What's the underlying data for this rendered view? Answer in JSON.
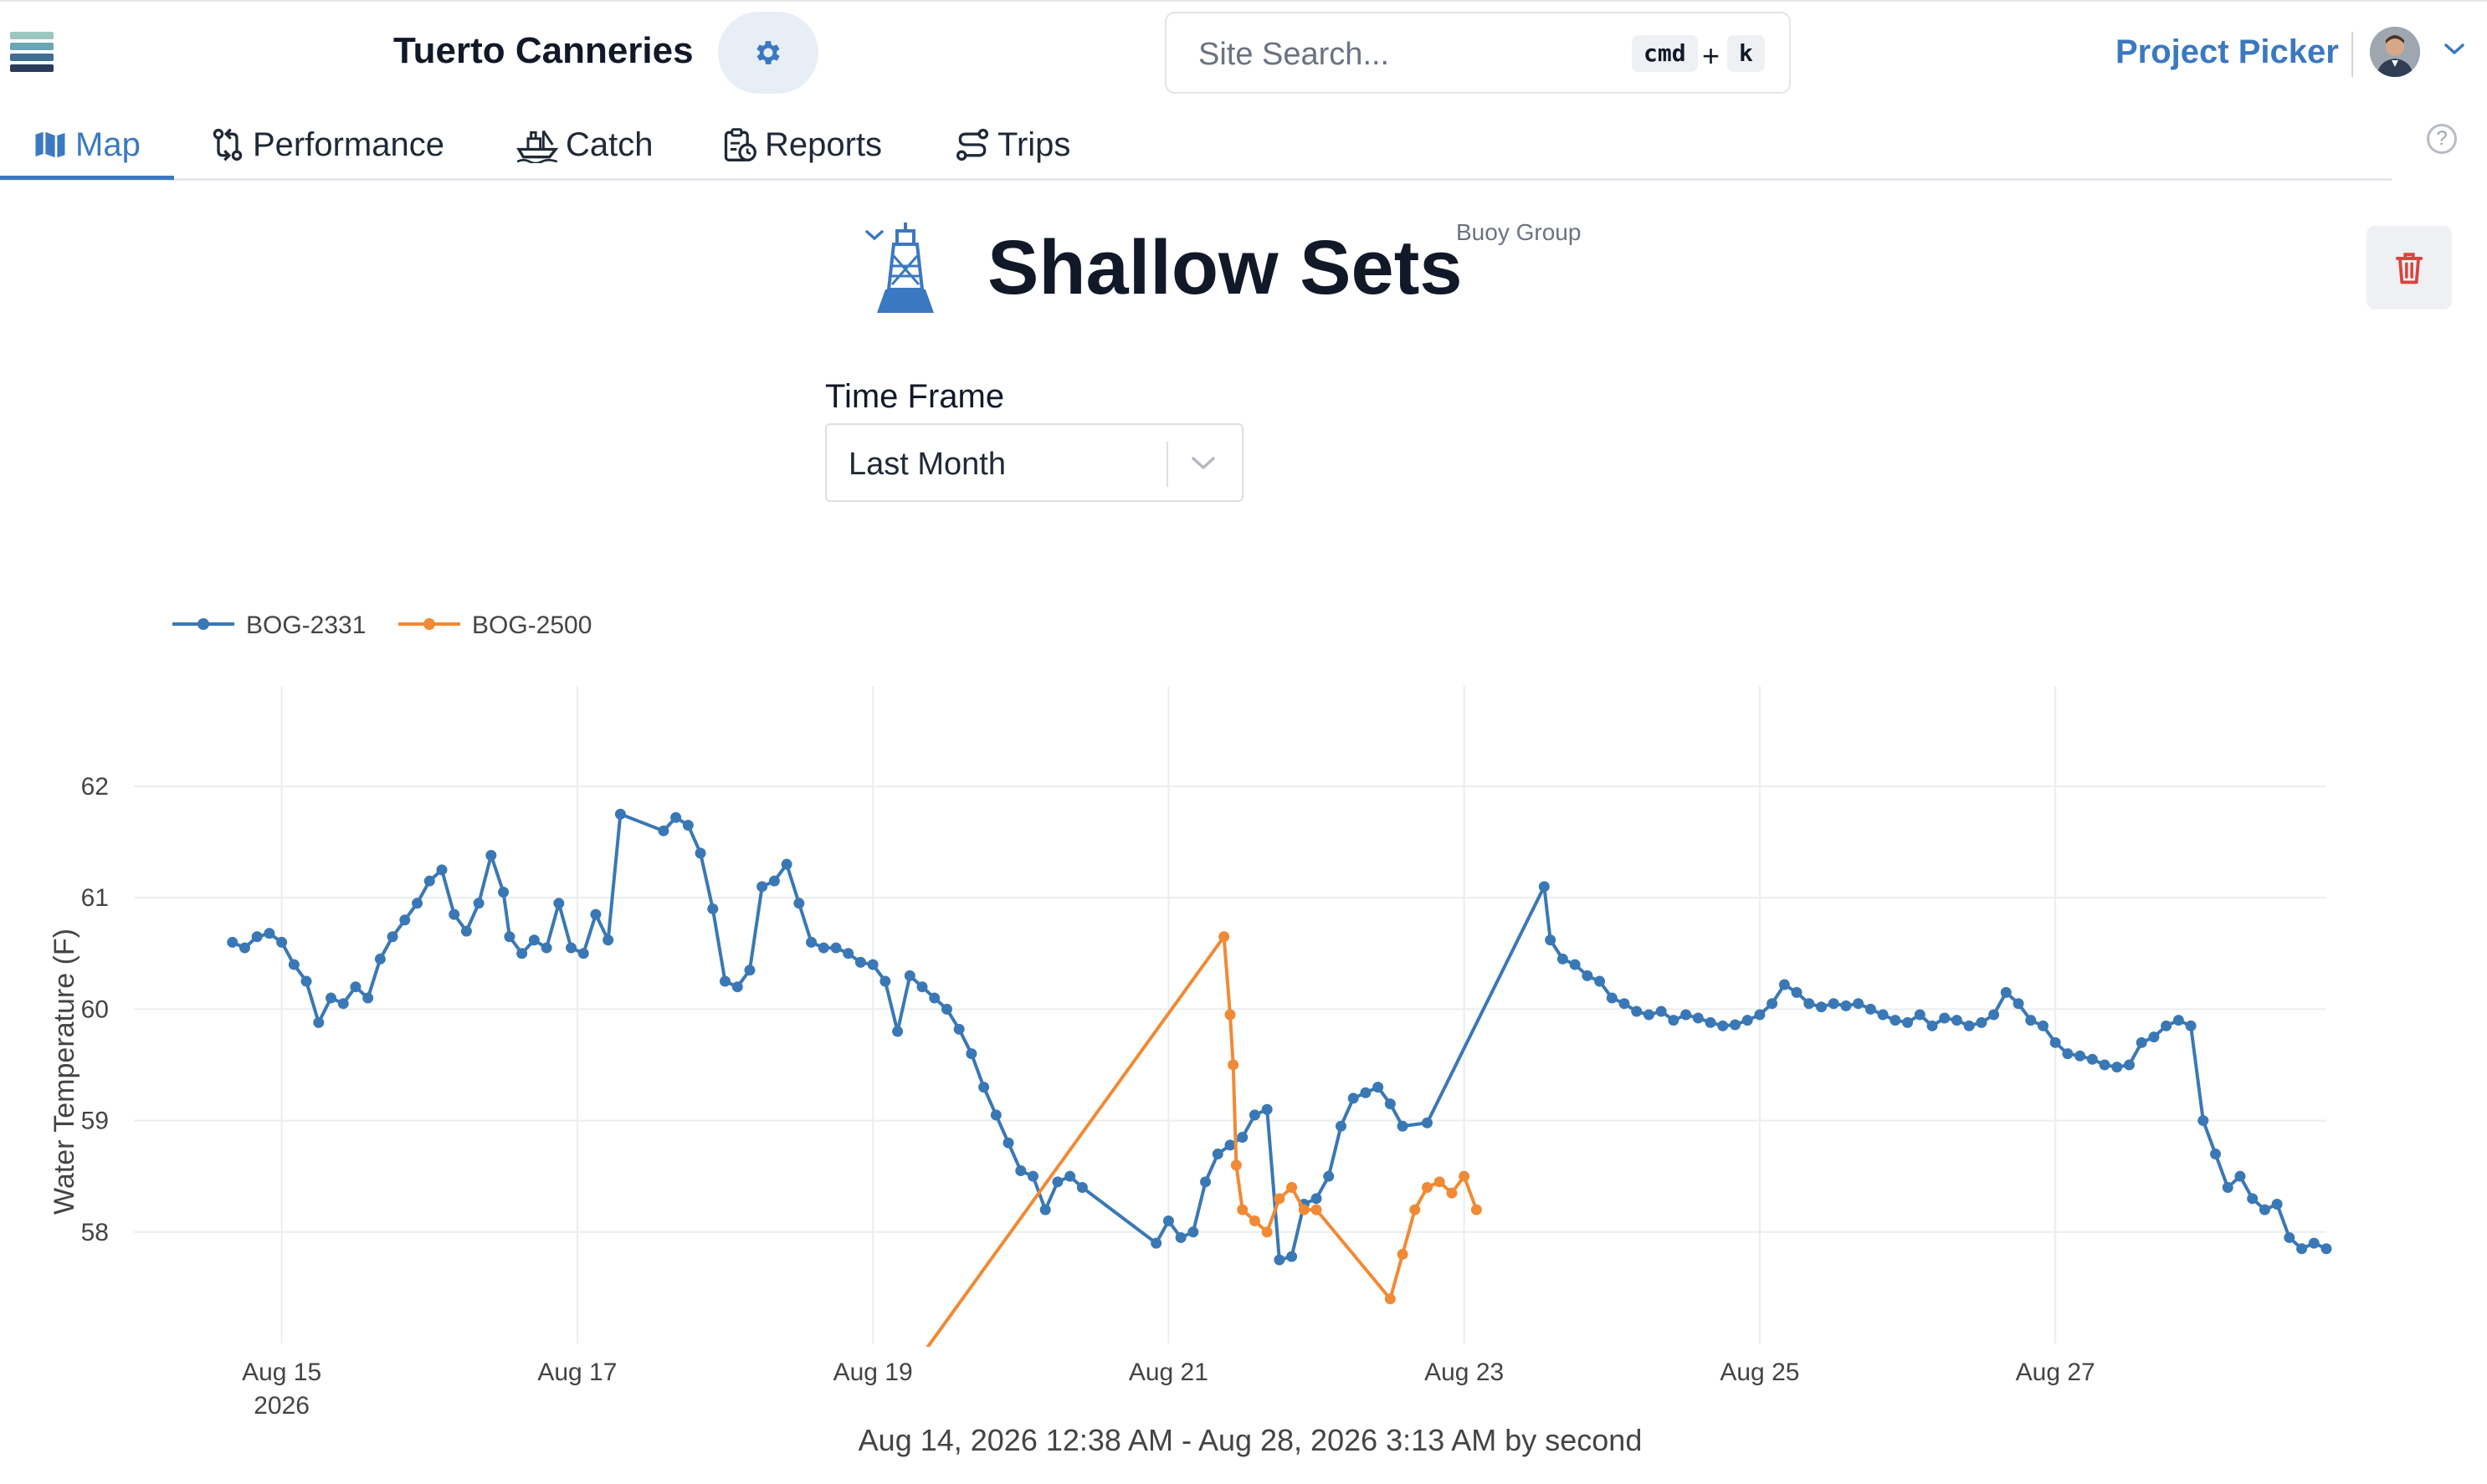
{
  "header": {
    "org_name": "Tuerto Canneries",
    "search_placeholder": "Site Search...",
    "shortcut_cmd": "cmd",
    "shortcut_plus": "+",
    "shortcut_key": "k",
    "project_picker": "Project Picker"
  },
  "nav": {
    "tabs": [
      {
        "label": "Map",
        "icon": "map-icon",
        "active": true
      },
      {
        "label": "Performance",
        "icon": "git-compare-icon",
        "active": false
      },
      {
        "label": "Catch",
        "icon": "boat-icon",
        "active": false
      },
      {
        "label": "Reports",
        "icon": "clipboard-clock-icon",
        "active": false
      },
      {
        "label": "Trips",
        "icon": "route-icon",
        "active": false
      }
    ],
    "help": "?"
  },
  "page": {
    "title": "Shallow Sets",
    "group_label": "Buoy Group",
    "timeframe_label": "Time Frame",
    "timeframe_value": "Last Month"
  },
  "colors": {
    "accent": "#3b78c2",
    "series_1": "#3a78b5",
    "series_2": "#f08a35",
    "danger": "#d9443d"
  },
  "chart_data": {
    "type": "line",
    "ylabel": "Water Temperature (F)",
    "xlabel": "Aug 14, 2026 12:38 AM - Aug 28, 2026 3:13 AM by second",
    "x_tick_labels": [
      "Aug 15",
      "Aug 17",
      "Aug 19",
      "Aug 21",
      "Aug 23",
      "Aug 25",
      "Aug 27"
    ],
    "x_tick_year": "2026",
    "x_range": [
      "2026-08-14T00:00",
      "2026-08-28T20:00"
    ],
    "y_tick_labels": [
      "62",
      "61",
      "60",
      "59",
      "58"
    ],
    "ylim": [
      57.0,
      62.6
    ],
    "grid": true,
    "legend_position": "top-left",
    "series": [
      {
        "name": "BOG-2331",
        "markers": true,
        "points": [
          [
            "2026-08-14T16:00",
            60.6
          ],
          [
            "2026-08-14T18:00",
            60.55
          ],
          [
            "2026-08-14T20:00",
            60.65
          ],
          [
            "2026-08-14T22:00",
            60.68
          ],
          [
            "2026-08-15T00:00",
            60.6
          ],
          [
            "2026-08-15T02:00",
            60.4
          ],
          [
            "2026-08-15T04:00",
            60.25
          ],
          [
            "2026-08-15T06:00",
            59.88
          ],
          [
            "2026-08-15T08:00",
            60.1
          ],
          [
            "2026-08-15T10:00",
            60.05
          ],
          [
            "2026-08-15T12:00",
            60.2
          ],
          [
            "2026-08-15T14:00",
            60.1
          ],
          [
            "2026-08-15T16:00",
            60.45
          ],
          [
            "2026-08-15T18:00",
            60.65
          ],
          [
            "2026-08-15T20:00",
            60.8
          ],
          [
            "2026-08-15T22:00",
            60.95
          ],
          [
            "2026-08-16T00:00",
            61.15
          ],
          [
            "2026-08-16T02:00",
            61.25
          ],
          [
            "2026-08-16T04:00",
            60.85
          ],
          [
            "2026-08-16T06:00",
            60.7
          ],
          [
            "2026-08-16T08:00",
            60.95
          ],
          [
            "2026-08-16T10:00",
            61.38
          ],
          [
            "2026-08-16T12:00",
            61.05
          ],
          [
            "2026-08-16T13:00",
            60.65
          ],
          [
            "2026-08-16T15:00",
            60.5
          ],
          [
            "2026-08-16T17:00",
            60.62
          ],
          [
            "2026-08-16T19:00",
            60.55
          ],
          [
            "2026-08-16T21:00",
            60.95
          ],
          [
            "2026-08-16T23:00",
            60.55
          ],
          [
            "2026-08-17T01:00",
            60.5
          ],
          [
            "2026-08-17T03:00",
            60.85
          ],
          [
            "2026-08-17T05:00",
            60.62
          ],
          [
            "2026-08-17T07:00",
            61.75
          ],
          [
            "2026-08-17T14:00",
            61.6
          ],
          [
            "2026-08-17T16:00",
            61.72
          ],
          [
            "2026-08-17T18:00",
            61.65
          ],
          [
            "2026-08-17T20:00",
            61.4
          ],
          [
            "2026-08-17T22:00",
            60.9
          ],
          [
            "2026-08-18T00:00",
            60.25
          ],
          [
            "2026-08-18T02:00",
            60.2
          ],
          [
            "2026-08-18T04:00",
            60.35
          ],
          [
            "2026-08-18T06:00",
            61.1
          ],
          [
            "2026-08-18T08:00",
            61.15
          ],
          [
            "2026-08-18T10:00",
            61.3
          ],
          [
            "2026-08-18T12:00",
            60.95
          ],
          [
            "2026-08-18T14:00",
            60.6
          ],
          [
            "2026-08-18T16:00",
            60.55
          ],
          [
            "2026-08-18T18:00",
            60.55
          ],
          [
            "2026-08-18T20:00",
            60.5
          ],
          [
            "2026-08-18T22:00",
            60.42
          ],
          [
            "2026-08-19T00:00",
            60.4
          ],
          [
            "2026-08-19T02:00",
            60.25
          ],
          [
            "2026-08-19T04:00",
            59.8
          ],
          [
            "2026-08-19T06:00",
            60.3
          ],
          [
            "2026-08-19T08:00",
            60.2
          ],
          [
            "2026-08-19T10:00",
            60.1
          ],
          [
            "2026-08-19T12:00",
            60.0
          ],
          [
            "2026-08-19T14:00",
            59.82
          ],
          [
            "2026-08-19T16:00",
            59.6
          ],
          [
            "2026-08-19T18:00",
            59.3
          ],
          [
            "2026-08-19T20:00",
            59.05
          ],
          [
            "2026-08-19T22:00",
            58.8
          ],
          [
            "2026-08-20T00:00",
            58.55
          ],
          [
            "2026-08-20T02:00",
            58.5
          ],
          [
            "2026-08-20T04:00",
            58.2
          ],
          [
            "2026-08-20T06:00",
            58.45
          ],
          [
            "2026-08-20T08:00",
            58.5
          ],
          [
            "2026-08-20T10:00",
            58.4
          ],
          [
            "2026-08-20T22:00",
            57.9
          ],
          [
            "2026-08-21T00:00",
            58.1
          ],
          [
            "2026-08-21T02:00",
            57.95
          ],
          [
            "2026-08-21T04:00",
            58.0
          ],
          [
            "2026-08-21T06:00",
            58.45
          ],
          [
            "2026-08-21T08:00",
            58.7
          ],
          [
            "2026-08-21T10:00",
            58.78
          ],
          [
            "2026-08-21T12:00",
            58.85
          ],
          [
            "2026-08-21T14:00",
            59.05
          ],
          [
            "2026-08-21T16:00",
            59.1
          ],
          [
            "2026-08-21T18:00",
            57.75
          ],
          [
            "2026-08-21T20:00",
            57.78
          ],
          [
            "2026-08-21T22:00",
            58.25
          ],
          [
            "2026-08-22T00:00",
            58.3
          ],
          [
            "2026-08-22T02:00",
            58.5
          ],
          [
            "2026-08-22T04:00",
            58.95
          ],
          [
            "2026-08-22T06:00",
            59.2
          ],
          [
            "2026-08-22T08:00",
            59.25
          ],
          [
            "2026-08-22T10:00",
            59.3
          ],
          [
            "2026-08-22T12:00",
            59.15
          ],
          [
            "2026-08-22T14:00",
            58.95
          ],
          [
            "2026-08-22T18:00",
            58.98
          ],
          [
            "2026-08-23T13:00",
            61.1
          ],
          [
            "2026-08-23T14:00",
            60.62
          ],
          [
            "2026-08-23T16:00",
            60.45
          ],
          [
            "2026-08-23T18:00",
            60.4
          ],
          [
            "2026-08-23T20:00",
            60.3
          ],
          [
            "2026-08-23T22:00",
            60.25
          ],
          [
            "2026-08-24T00:00",
            60.1
          ],
          [
            "2026-08-24T02:00",
            60.05
          ],
          [
            "2026-08-24T04:00",
            59.98
          ],
          [
            "2026-08-24T06:00",
            59.95
          ],
          [
            "2026-08-24T08:00",
            59.98
          ],
          [
            "2026-08-24T10:00",
            59.9
          ],
          [
            "2026-08-24T12:00",
            59.95
          ],
          [
            "2026-08-24T14:00",
            59.92
          ],
          [
            "2026-08-24T16:00",
            59.88
          ],
          [
            "2026-08-24T18:00",
            59.85
          ],
          [
            "2026-08-24T20:00",
            59.86
          ],
          [
            "2026-08-24T22:00",
            59.9
          ],
          [
            "2026-08-25T00:00",
            59.95
          ],
          [
            "2026-08-25T02:00",
            60.05
          ],
          [
            "2026-08-25T04:00",
            60.22
          ],
          [
            "2026-08-25T06:00",
            60.15
          ],
          [
            "2026-08-25T08:00",
            60.05
          ],
          [
            "2026-08-25T10:00",
            60.02
          ],
          [
            "2026-08-25T12:00",
            60.05
          ],
          [
            "2026-08-25T14:00",
            60.03
          ],
          [
            "2026-08-25T16:00",
            60.05
          ],
          [
            "2026-08-25T18:00",
            60.0
          ],
          [
            "2026-08-25T20:00",
            59.95
          ],
          [
            "2026-08-25T22:00",
            59.9
          ],
          [
            "2026-08-26T00:00",
            59.88
          ],
          [
            "2026-08-26T02:00",
            59.95
          ],
          [
            "2026-08-26T04:00",
            59.85
          ],
          [
            "2026-08-26T06:00",
            59.92
          ],
          [
            "2026-08-26T08:00",
            59.9
          ],
          [
            "2026-08-26T10:00",
            59.85
          ],
          [
            "2026-08-26T12:00",
            59.88
          ],
          [
            "2026-08-26T14:00",
            59.95
          ],
          [
            "2026-08-26T16:00",
            60.15
          ],
          [
            "2026-08-26T18:00",
            60.05
          ],
          [
            "2026-08-26T20:00",
            59.9
          ],
          [
            "2026-08-26T22:00",
            59.85
          ],
          [
            "2026-08-27T00:00",
            59.7
          ],
          [
            "2026-08-27T02:00",
            59.6
          ],
          [
            "2026-08-27T04:00",
            59.58
          ],
          [
            "2026-08-27T06:00",
            59.55
          ],
          [
            "2026-08-27T08:00",
            59.5
          ],
          [
            "2026-08-27T10:00",
            59.48
          ],
          [
            "2026-08-27T12:00",
            59.5
          ],
          [
            "2026-08-27T14:00",
            59.7
          ],
          [
            "2026-08-27T16:00",
            59.75
          ],
          [
            "2026-08-27T18:00",
            59.85
          ],
          [
            "2026-08-27T20:00",
            59.9
          ],
          [
            "2026-08-27T22:00",
            59.85
          ],
          [
            "2026-08-28T00:00",
            59.0
          ],
          [
            "2026-08-28T02:00",
            58.7
          ],
          [
            "2026-08-28T04:00",
            58.4
          ],
          [
            "2026-08-28T06:00",
            58.5
          ],
          [
            "2026-08-28T08:00",
            58.3
          ],
          [
            "2026-08-28T10:00",
            58.2
          ],
          [
            "2026-08-28T12:00",
            58.25
          ],
          [
            "2026-08-28T14:00",
            57.95
          ],
          [
            "2026-08-28T16:00",
            57.85
          ],
          [
            "2026-08-28T18:00",
            57.9
          ],
          [
            "2026-08-28T20:00",
            57.85
          ]
        ]
      },
      {
        "name": "BOG-2500",
        "markers": true,
        "points": [
          [
            "2026-08-19T08:00",
            56.9
          ],
          [
            "2026-08-21T09:00",
            60.65
          ],
          [
            "2026-08-21T10:00",
            59.95
          ],
          [
            "2026-08-21T10:30",
            59.5
          ],
          [
            "2026-08-21T11:00",
            58.6
          ],
          [
            "2026-08-21T12:00",
            58.2
          ],
          [
            "2026-08-21T14:00",
            58.1
          ],
          [
            "2026-08-21T16:00",
            58.0
          ],
          [
            "2026-08-21T18:00",
            58.3
          ],
          [
            "2026-08-21T20:00",
            58.4
          ],
          [
            "2026-08-21T22:00",
            58.2
          ],
          [
            "2026-08-22T00:00",
            58.2
          ],
          [
            "2026-08-22T12:00",
            57.4
          ],
          [
            "2026-08-22T14:00",
            57.8
          ],
          [
            "2026-08-22T16:00",
            58.2
          ],
          [
            "2026-08-22T18:00",
            58.4
          ],
          [
            "2026-08-22T20:00",
            58.45
          ],
          [
            "2026-08-22T22:00",
            58.35
          ],
          [
            "2026-08-23T00:00",
            58.5
          ],
          [
            "2026-08-23T02:00",
            58.2
          ]
        ]
      }
    ]
  }
}
